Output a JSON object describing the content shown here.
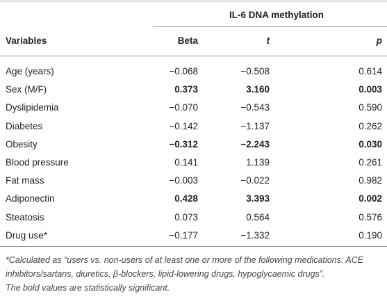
{
  "table": {
    "group_header": "IL-6 DNA methylation",
    "columns": [
      "Variables",
      "Beta",
      "t",
      "p"
    ],
    "rows": [
      {
        "cells": [
          "Age (years)",
          "−0.068",
          "−0.508",
          "0.614"
        ],
        "bold": false
      },
      {
        "cells": [
          "Sex (M/F)",
          "0.373",
          "3.160",
          "0.003"
        ],
        "bold": true
      },
      {
        "cells": [
          "Dyslipidemia",
          "−0.070",
          "−0.543",
          "0.590"
        ],
        "bold": false
      },
      {
        "cells": [
          "Diabetes",
          "−0.142",
          "−1.137",
          "0.262"
        ],
        "bold": false
      },
      {
        "cells": [
          "Obesity",
          "−0.312",
          "−2.243",
          "0.030"
        ],
        "bold": true
      },
      {
        "cells": [
          "Blood pressure",
          "0.141",
          "1.139",
          "0.261"
        ],
        "bold": false
      },
      {
        "cells": [
          "Fat mass",
          "−0.003",
          "−0.022",
          "0.982"
        ],
        "bold": false
      },
      {
        "cells": [
          "Adiponectin",
          "0.428",
          "3.393",
          "0.002"
        ],
        "bold": true
      },
      {
        "cells": [
          "Steatosis",
          "0.073",
          "0.564",
          "0.576"
        ],
        "bold": false
      },
      {
        "cells": [
          "Drug use*",
          "−0.177",
          "−1.332",
          "0.190"
        ],
        "bold": false
      }
    ]
  },
  "footnotes": [
    "*Calculated as “users vs. non-users of at least one or more of the following medications: ACE inhibitors/sartans, diuretics, β-blockers, lipid-lowering drugs, hypoglycaemic drugs”.",
    "The bold values are statistically significant."
  ]
}
